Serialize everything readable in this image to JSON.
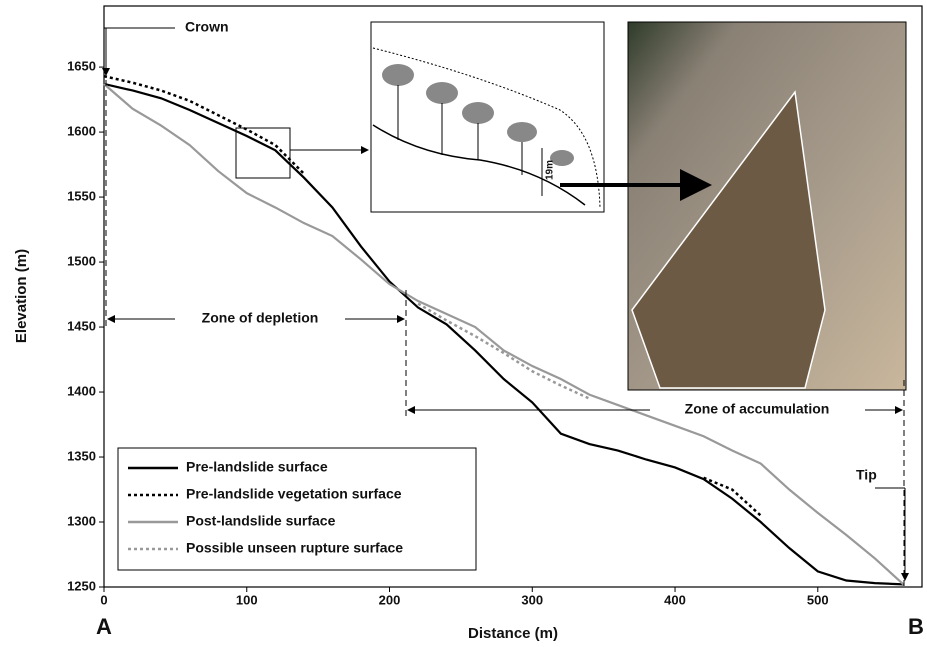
{
  "chart_data": {
    "type": "line",
    "x_label": "Distance (m)",
    "y_label": "Elevation (m)",
    "xlim": [
      0,
      573
    ],
    "ylim": [
      1250,
      1697
    ],
    "xticks": [
      0,
      100,
      200,
      300,
      400,
      500
    ],
    "yticks": [
      1250,
      1300,
      1350,
      1400,
      1450,
      1500,
      1550,
      1600,
      1650
    ],
    "legend": "bottom-left",
    "annotations": [
      "Crown",
      "Zone of depletion",
      "Zone of accumulation",
      "Tip",
      "A",
      "B",
      "19m"
    ],
    "x": [
      0,
      20,
      40,
      60,
      80,
      100,
      120,
      140,
      160,
      180,
      200,
      220,
      240,
      260,
      280,
      300,
      320,
      340,
      360,
      380,
      400,
      420,
      440,
      460,
      480,
      500,
      520,
      540,
      560
    ],
    "series": [
      {
        "name": "Pre-landslide surface",
        "color": "#000000",
        "dash": "solid",
        "values": [
          1637,
          1632,
          1626,
          1617,
          1607,
          1597,
          1586,
          1565,
          1542,
          1512,
          1485,
          1465,
          1452,
          1432,
          1410,
          1392,
          1368,
          1360,
          1355,
          1348,
          1342,
          1333,
          1318,
          1300,
          1280,
          1262,
          1255,
          1253,
          1252
        ]
      },
      {
        "name": "Pre-landslide vegetation surface",
        "color": "#000000",
        "dash": "dotted",
        "values": [
          1643,
          1638,
          1632,
          1624,
          1613,
          1602,
          1590,
          1568,
          null,
          null,
          null,
          null,
          null,
          null,
          null,
          null,
          null,
          null,
          null,
          null,
          null,
          1334,
          1325,
          1305,
          null,
          null,
          null,
          null,
          null
        ]
      },
      {
        "name": "Post-landslide surface",
        "color": "#999999",
        "dash": "solid",
        "values": [
          1637,
          1618,
          1605,
          1590,
          1570,
          1553,
          1542,
          1530,
          1520,
          1502,
          1483,
          1470,
          1460,
          1450,
          1432,
          1420,
          1410,
          1398,
          1390,
          1382,
          1374,
          1366,
          1355,
          1345,
          1325,
          1307,
          1290,
          1272,
          1252
        ]
      },
      {
        "name": "Possible unseen rupture surface",
        "color": "#999999",
        "dash": "dotted",
        "values": [
          null,
          null,
          null,
          null,
          null,
          null,
          null,
          null,
          null,
          null,
          null,
          1468,
          1455,
          1443,
          1430,
          1416,
          1405,
          1395,
          null,
          null,
          null,
          null,
          null,
          null,
          null,
          null,
          null,
          null,
          null
        ]
      }
    ]
  }
}
